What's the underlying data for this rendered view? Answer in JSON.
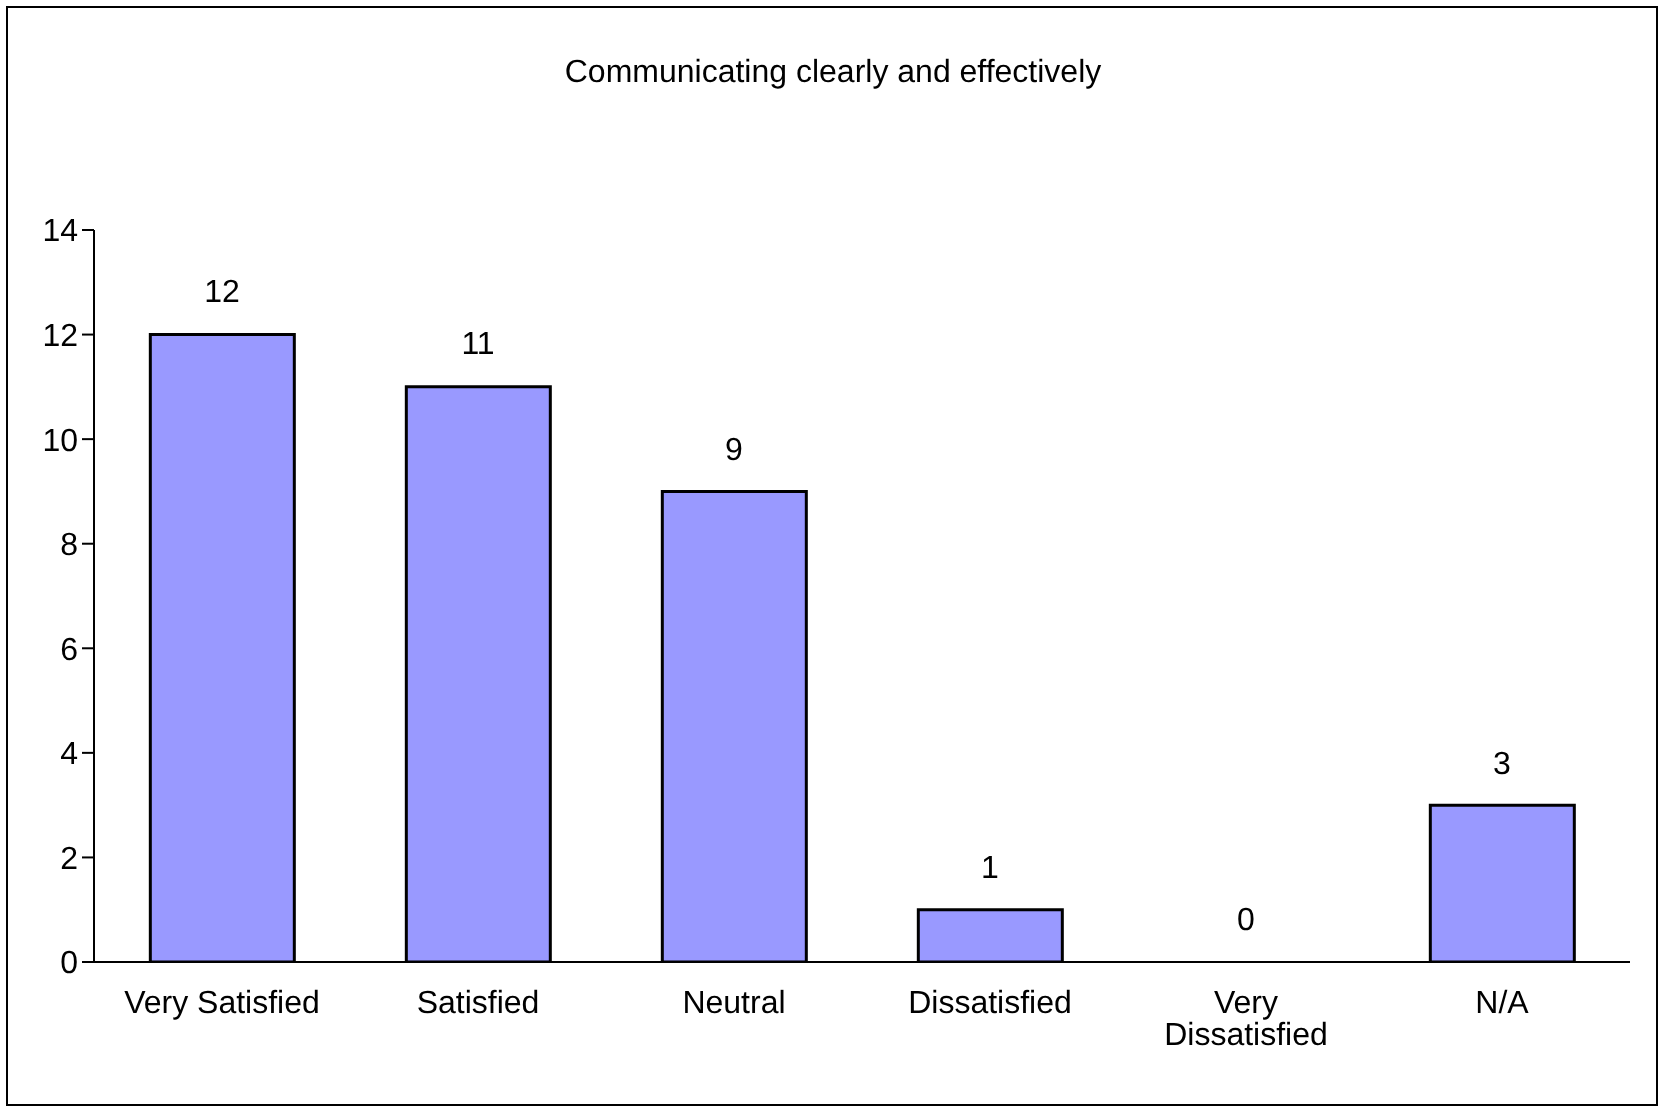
{
  "chart_data": {
    "type": "bar",
    "title": "Communicating clearly and effectively",
    "categories": [
      "Very Satisfied",
      "Satisfied",
      "Neutral",
      "Dissatisfied",
      "Very Dissatisfied",
      "N/A"
    ],
    "values": [
      12,
      11,
      9,
      1,
      0,
      3
    ],
    "color": "#9999ff",
    "ylim": [
      0,
      14
    ],
    "yticks": [
      0,
      2,
      4,
      6,
      8,
      10,
      12,
      14
    ],
    "grid": false,
    "data_labels": true
  }
}
